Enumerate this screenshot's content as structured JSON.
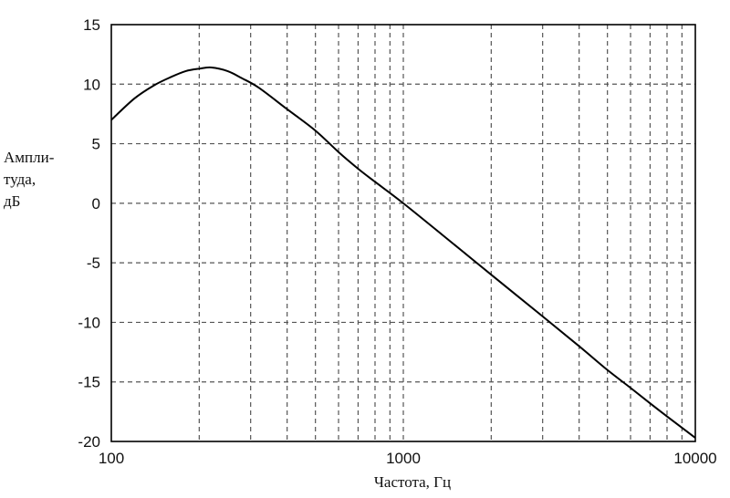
{
  "chart_data": {
    "type": "line",
    "title": "",
    "xlabel": "Частота, Гц",
    "ylabel_lines": [
      "Ампли-",
      "туда,",
      "дБ"
    ],
    "x_scale": "log",
    "xlim": [
      100,
      10000
    ],
    "ylim": [
      -20,
      15
    ],
    "x_ticks": [
      100,
      1000,
      10000
    ],
    "x_tick_labels": [
      "100",
      "1000",
      "10000"
    ],
    "y_ticks": [
      15,
      10,
      5,
      0,
      -5,
      -10,
      -15,
      -20
    ],
    "y_tick_labels": [
      "15",
      "10",
      "5",
      "0",
      "-5",
      "-10",
      "-15",
      "-20"
    ],
    "grid": true,
    "series": [
      {
        "x": [
          100,
          120,
          140,
          160,
          180,
          200,
          220,
          250,
          280,
          320,
          400,
          500,
          600,
          700,
          800,
          1000,
          1500,
          2000,
          3000,
          4000,
          5000,
          6000,
          7000,
          8000,
          10000
        ],
        "y": [
          7,
          8.8,
          9.9,
          10.6,
          11.1,
          11.3,
          11.4,
          11.1,
          10.5,
          9.7,
          7.9,
          6.1,
          4.3,
          2.9,
          1.8,
          0,
          -3.5,
          -6,
          -9.5,
          -12,
          -14,
          -15.5,
          -16.8,
          -17.9,
          -19.7
        ]
      }
    ]
  }
}
